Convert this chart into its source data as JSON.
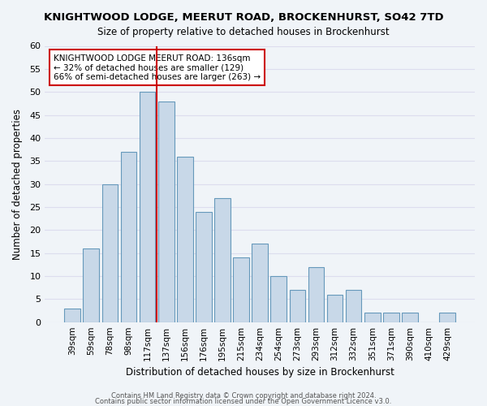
{
  "title": "KNIGHTWOOD LODGE, MEERUT ROAD, BROCKENHURST, SO42 7TD",
  "subtitle": "Size of property relative to detached houses in Brockenhurst",
  "xlabel": "Distribution of detached houses by size in Brockenhurst",
  "ylabel": "Number of detached properties",
  "footer_line1": "Contains HM Land Registry data © Crown copyright and database right 2024.",
  "footer_line2": "Contains public sector information licensed under the Open Government Licence v3.0.",
  "bar_labels": [
    "39sqm",
    "59sqm",
    "78sqm",
    "98sqm",
    "117sqm",
    "137sqm",
    "156sqm",
    "176sqm",
    "195sqm",
    "215sqm",
    "234sqm",
    "254sqm",
    "273sqm",
    "293sqm",
    "312sqm",
    "332sqm",
    "351sqm",
    "371sqm",
    "390sqm",
    "410sqm",
    "429sqm"
  ],
  "bar_values": [
    3,
    16,
    30,
    37,
    50,
    48,
    36,
    24,
    27,
    14,
    17,
    10,
    7,
    12,
    6,
    7,
    2,
    2,
    2,
    0,
    2
  ],
  "bar_color": "#c8d8e8",
  "bar_edge_color": "#6699bb",
  "grid_color": "#ddddee",
  "vline_color": "#cc0000",
  "vline_x": 4.5,
  "ylim": [
    0,
    60
  ],
  "yticks": [
    0,
    5,
    10,
    15,
    20,
    25,
    30,
    35,
    40,
    45,
    50,
    55,
    60
  ],
  "annotation_title": "KNIGHTWOOD LODGE MEERUT ROAD: 136sqm",
  "annotation_line2": "← 32% of detached houses are smaller (129)",
  "annotation_line3": "66% of semi-detached houses are larger (263) →",
  "annotation_box_color": "#ffffff",
  "annotation_box_edge_color": "#cc0000",
  "background_color": "#f0f4f8"
}
